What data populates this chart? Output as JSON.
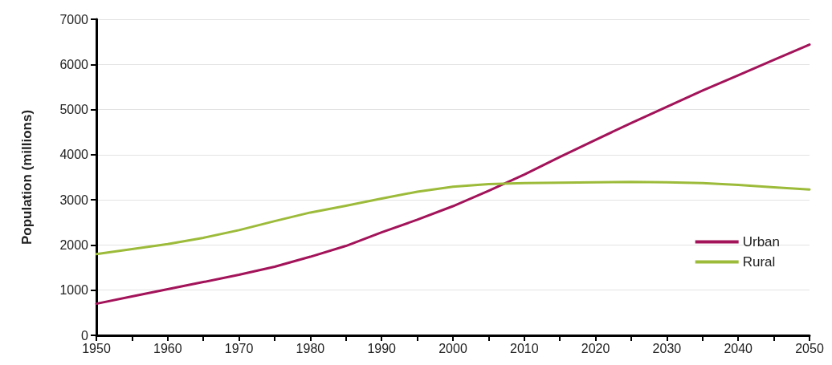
{
  "chart_data": {
    "type": "line",
    "ylabel": "Population (millions)",
    "x": [
      1950,
      1955,
      1960,
      1965,
      1970,
      1975,
      1980,
      1985,
      1990,
      1995,
      2000,
      2005,
      2010,
      2015,
      2020,
      2025,
      2030,
      2035,
      2040,
      2045,
      2050
    ],
    "series": [
      {
        "name": "Urban",
        "color": "#a3135a",
        "values": [
          700,
          860,
          1020,
          1180,
          1340,
          1520,
          1740,
          1980,
          2280,
          2560,
          2860,
          3200,
          3560,
          3950,
          4330,
          4700,
          5060,
          5420,
          5760,
          6100,
          6440
        ]
      },
      {
        "name": "Rural",
        "color": "#9dbb3a",
        "values": [
          1800,
          1910,
          2020,
          2160,
          2330,
          2530,
          2720,
          2870,
          3030,
          3180,
          3290,
          3350,
          3370,
          3380,
          3390,
          3400,
          3390,
          3370,
          3330,
          3280,
          3230
        ]
      }
    ],
    "xlim": [
      1950,
      2050
    ],
    "xticks": [
      1950,
      {
        "value": 1955,
        "label": null
      },
      1960,
      {
        "value": 1965,
        "label": null
      },
      1970,
      {
        "value": 1975,
        "label": null
      },
      1980,
      {
        "value": 1985,
        "label": null
      },
      1990,
      {
        "value": 1995,
        "label": null
      },
      2000,
      {
        "value": 2005,
        "label": null
      },
      2010,
      {
        "value": 2015,
        "label": null
      },
      2020,
      {
        "value": 2025,
        "label": null
      },
      2030,
      {
        "value": 2035,
        "label": null
      },
      2040,
      {
        "value": 2045,
        "label": null
      },
      2050
    ],
    "ylim": [
      0,
      7000
    ],
    "yticks": [
      0,
      1000,
      2000,
      3000,
      4000,
      5000,
      6000,
      7000
    ],
    "grid": "y",
    "legend": "bottom right",
    "marker": "none",
    "line_style": "solid"
  }
}
